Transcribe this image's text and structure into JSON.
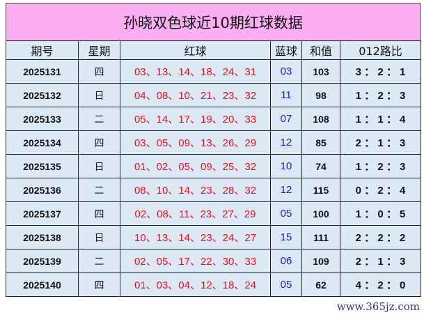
{
  "title": "孙晓双色球近10期红球数据",
  "headers": [
    "期号",
    "星期",
    "红球",
    "蓝球",
    "和值",
    "012路比"
  ],
  "rows": [
    {
      "issue": "2025131",
      "weekday": "四",
      "red": "03、13、14、18、24、31",
      "blue": "03",
      "sum": "103",
      "ratio": "3 ： 2 ： 1"
    },
    {
      "issue": "2025132",
      "weekday": "日",
      "red": "04、08、10、21、23、32",
      "blue": "11",
      "sum": "98",
      "ratio": "1 ： 2 ： 3"
    },
    {
      "issue": "2025133",
      "weekday": "二",
      "red": "05、14、17、19、20、33",
      "blue": "07",
      "sum": "108",
      "ratio": "1 ： 1 ： 4"
    },
    {
      "issue": "2025134",
      "weekday": "四",
      "red": "03、05、09、13、26、29",
      "blue": "12",
      "sum": "85",
      "ratio": "2 ： 1 ： 3"
    },
    {
      "issue": "2025135",
      "weekday": "日",
      "red": "01、02、05、09、25、32",
      "blue": "10",
      "sum": "74",
      "ratio": "1 ： 2 ： 3"
    },
    {
      "issue": "2025136",
      "weekday": "二",
      "red": "08、10、14、23、28、32",
      "blue": "12",
      "sum": "115",
      "ratio": "0 ： 2 ： 4"
    },
    {
      "issue": "2025137",
      "weekday": "四",
      "red": "02、08、11、23、27、29",
      "blue": "05",
      "sum": "100",
      "ratio": "1 ： 0 ： 5"
    },
    {
      "issue": "2025138",
      "weekday": "日",
      "red": "10、13、14、23、24、27",
      "blue": "15",
      "sum": "111",
      "ratio": "2 ： 2 ： 2"
    },
    {
      "issue": "2025139",
      "weekday": "二",
      "red": "02、05、17、22、30、33",
      "blue": "06",
      "sum": "109",
      "ratio": "2 ： 1 ： 3"
    },
    {
      "issue": "2025140",
      "weekday": "四",
      "red": "01、03、04、12、18、24",
      "blue": "05",
      "sum": "62",
      "ratio": "4 ： 2 ： 0"
    }
  ],
  "watermark": "www.365jz.com",
  "colors": {
    "title_bg": "#fbaef3",
    "cell_bg": "#dde8f5",
    "red": "#e8101c",
    "blue": "#1a22c8"
  }
}
